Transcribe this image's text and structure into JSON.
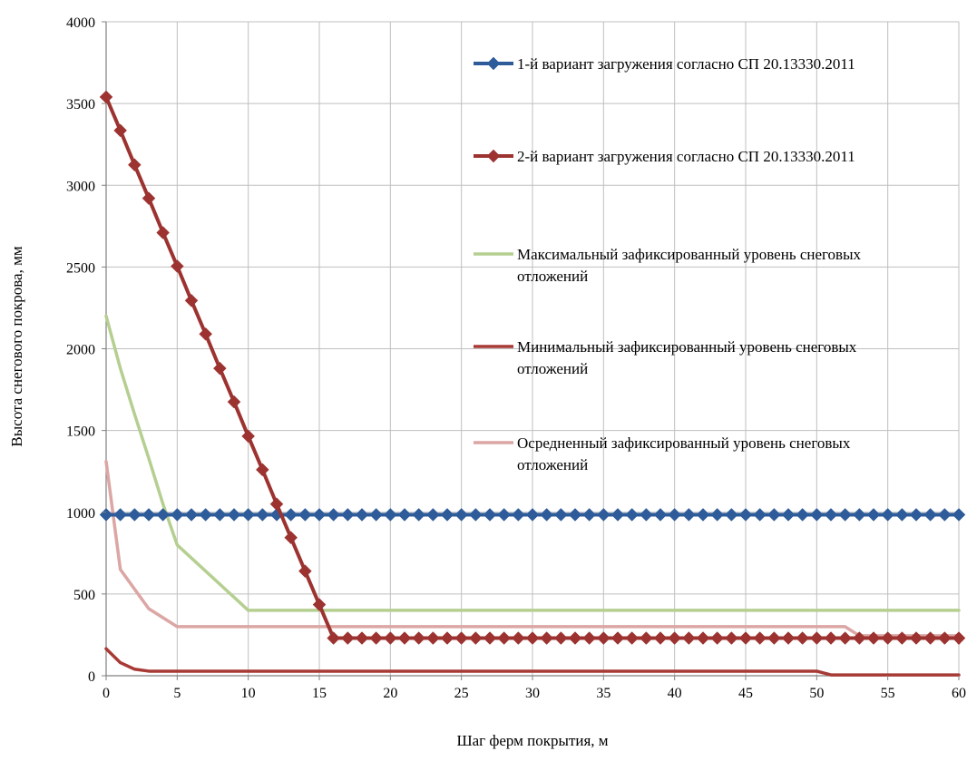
{
  "chart_data": {
    "type": "line",
    "title": "",
    "xlabel": "Шаг ферм покрытия, м",
    "ylabel": "Высота снегового покрова, мм",
    "xlim": [
      0,
      60
    ],
    "ylim": [
      0,
      4000
    ],
    "x_ticks": [
      0,
      5,
      10,
      15,
      20,
      25,
      30,
      35,
      40,
      45,
      50,
      55,
      60
    ],
    "y_ticks": [
      0,
      500,
      1000,
      1500,
      2000,
      2500,
      3000,
      3500,
      4000
    ],
    "grid": true,
    "legend_position": "right",
    "series": [
      {
        "name": "1-й вариант загружения согласно СП 20.13330.2011",
        "color": "#2e5b99",
        "marker": "diamond",
        "points": [
          [
            0,
            985
          ],
          [
            60,
            985
          ]
        ],
        "marker_step": 1
      },
      {
        "name": "2-й вариант загружения согласно СП 20.13330.2011",
        "color": "#9c3330",
        "marker": "diamond",
        "points": [
          [
            0,
            3540
          ],
          [
            1,
            3335
          ],
          [
            2,
            3125
          ],
          [
            3,
            2920
          ],
          [
            4,
            2710
          ],
          [
            5,
            2505
          ],
          [
            6,
            2295
          ],
          [
            7,
            2090
          ],
          [
            8,
            1880
          ],
          [
            9,
            1675
          ],
          [
            10,
            1465
          ],
          [
            11,
            1260
          ],
          [
            12,
            1050
          ],
          [
            13,
            845
          ],
          [
            14,
            640
          ],
          [
            15,
            435
          ],
          [
            16,
            230
          ],
          [
            60,
            230
          ]
        ],
        "marker_step": 1
      },
      {
        "name": "Максимальный зафиксированный уровень снеговых отложений",
        "name_lines": [
          "Максимальный зафиксированный уровень снеговых",
          "отложений"
        ],
        "color": "#b5cf91",
        "marker": "none",
        "points": [
          [
            0,
            2200
          ],
          [
            1,
            1880
          ],
          [
            2,
            1600
          ],
          [
            3,
            1330
          ],
          [
            4,
            1050
          ],
          [
            5,
            800
          ],
          [
            10,
            400
          ],
          [
            60,
            400
          ]
        ]
      },
      {
        "name": "Минимальный зафиксированный уровень снеговых отложений",
        "name_lines": [
          "Минимальный зафиксированный уровень снеговых",
          "отложений"
        ],
        "color": "#a83a36",
        "marker": "none",
        "points": [
          [
            0,
            165
          ],
          [
            1,
            80
          ],
          [
            2,
            40
          ],
          [
            3,
            28
          ],
          [
            5,
            28
          ],
          [
            50,
            28
          ],
          [
            51,
            5
          ],
          [
            60,
            5
          ]
        ]
      },
      {
        "name": "Осредненный зафиксированный уровень снеговых отложений",
        "name_lines": [
          "Осредненный зафиксированный уровень снеговых",
          "отложений"
        ],
        "color": "#dba6a4",
        "marker": "none",
        "points": [
          [
            0,
            1310
          ],
          [
            1,
            650
          ],
          [
            2,
            530
          ],
          [
            3,
            410
          ],
          [
            4,
            355
          ],
          [
            5,
            300
          ],
          [
            52,
            300
          ],
          [
            53,
            245
          ],
          [
            60,
            245
          ],
          [
            60,
            200
          ]
        ]
      }
    ]
  }
}
